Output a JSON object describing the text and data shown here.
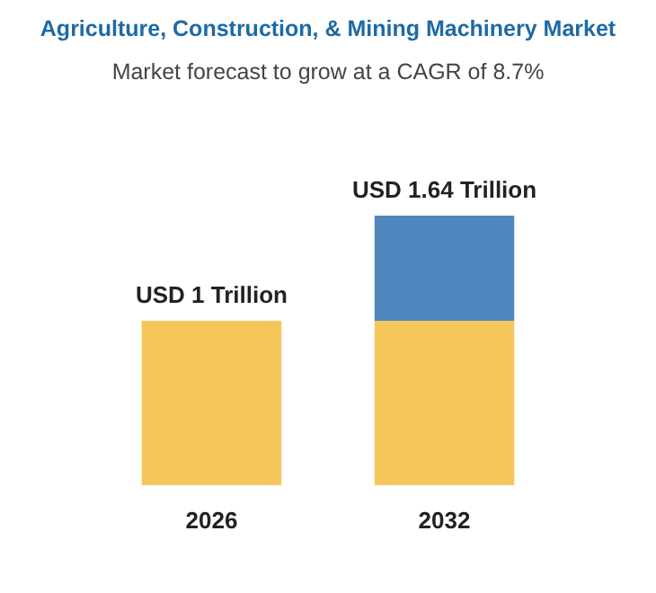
{
  "chart_data": {
    "type": "bar",
    "title": "Agriculture, Construction, & Mining Machinery Market",
    "subtitle": "Market forecast to grow at a CAGR of 8.7%",
    "categories": [
      "2026",
      "2032"
    ],
    "stacked": true,
    "series": [
      {
        "color": "#f5c65a",
        "values": [
          1,
          1
        ],
        "value_labels": [
          "USD 1 Trillion",
          null
        ]
      },
      {
        "color": "#4f86bd",
        "values": [
          null,
          0.64
        ]
      }
    ],
    "totals": [
      null,
      "USD 1.64 Trillion"
    ]
  }
}
